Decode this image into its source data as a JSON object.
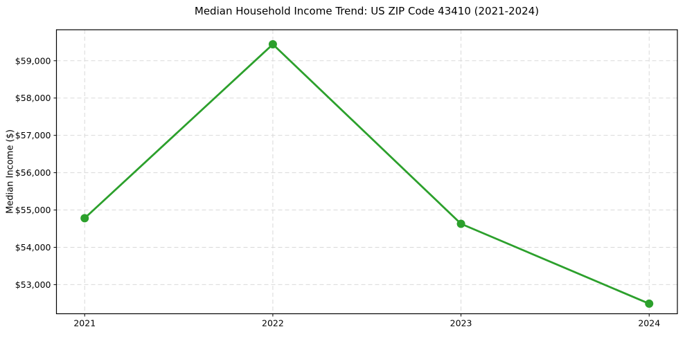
{
  "chart_data": {
    "type": "line",
    "title": "Median Household Income Trend: US ZIP Code 43410 (2021-2024)",
    "xlabel": "",
    "ylabel": "Median Income ($)",
    "x": [
      2021,
      2022,
      2023,
      2024
    ],
    "x_tick_labels": [
      "2021",
      "2022",
      "2023",
      "2024"
    ],
    "values": [
      54780,
      59440,
      54630,
      52490
    ],
    "series_name": "Median Household Income",
    "yticks": [
      53000,
      54000,
      55000,
      56000,
      57000,
      58000,
      59000
    ],
    "y_tick_labels": [
      "$53,000",
      "$54,000",
      "$55,000",
      "$56,000",
      "$57,000",
      "$58,000",
      "$59,000"
    ],
    "xlim": [
      2020.85,
      2024.15
    ],
    "ylim": [
      52220,
      59830
    ],
    "grid": "both-dashed",
    "legend": "none",
    "line_color": "#2ca02c",
    "marker": "circle",
    "grid_color": "#d9d9d9",
    "axis_color": "#000000",
    "background_color": "#ffffff"
  }
}
